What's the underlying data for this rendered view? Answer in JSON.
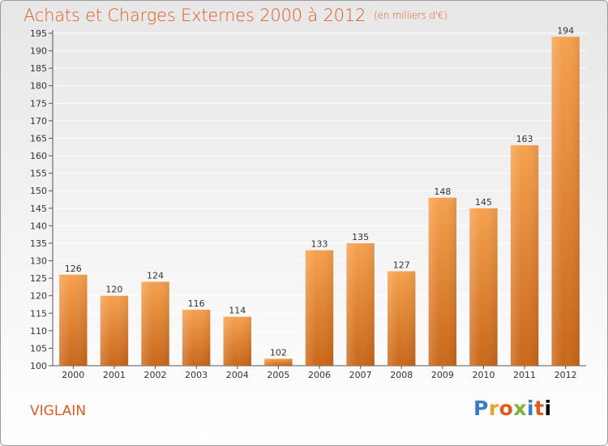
{
  "header": {
    "title": "Achats et Charges Externes 2000 à 2012",
    "unit": "(en milliers d'€)"
  },
  "commune": "VIGLAIN",
  "logo": {
    "letters": [
      "P",
      "r",
      "o",
      "x",
      "i",
      "t",
      "i"
    ]
  },
  "colors": {
    "bar_light": "#f6a14e",
    "bar_dark": "#c9671a",
    "title": "#e05a1f",
    "grid": "#ffffff"
  },
  "chart_data": {
    "type": "bar",
    "title": "Achats et Charges Externes 2000 à 2012",
    "subtitle": "(en milliers d'€)",
    "xlabel": "",
    "ylabel": "",
    "categories": [
      "2000",
      "2001",
      "2002",
      "2003",
      "2004",
      "2005",
      "2006",
      "2007",
      "2008",
      "2009",
      "2010",
      "2011",
      "2012"
    ],
    "values": [
      126,
      120,
      124,
      116,
      114,
      102,
      133,
      135,
      127,
      148,
      145,
      163,
      194
    ],
    "ylim": [
      100,
      195
    ],
    "ytick_step": 5,
    "grid": true,
    "legend": "none"
  }
}
